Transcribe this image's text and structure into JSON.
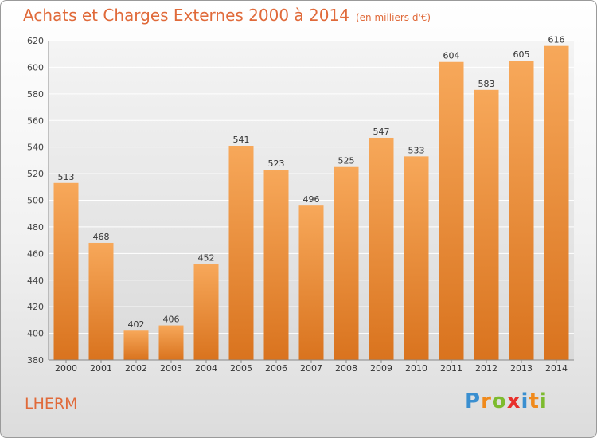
{
  "chart_data": {
    "type": "bar",
    "title": "Achats et Charges Externes 2000 à 2014",
    "subtitle": "(en milliers d'€)",
    "categories": [
      "2000",
      "2001",
      "2002",
      "2003",
      "2004",
      "2005",
      "2006",
      "2007",
      "2008",
      "2009",
      "2010",
      "2011",
      "2012",
      "2013",
      "2014"
    ],
    "values": [
      513,
      468,
      402,
      406,
      452,
      541,
      523,
      496,
      525,
      547,
      533,
      604,
      583,
      605,
      616
    ],
    "ylim": [
      380,
      620
    ],
    "yticks": [
      380,
      400,
      420,
      440,
      460,
      480,
      500,
      520,
      540,
      560,
      580,
      600,
      620
    ],
    "grid": true,
    "bar_color_top": "#f7a85a",
    "bar_color_bottom": "#d9731e"
  },
  "commune": "LHERM",
  "logo": {
    "letters": [
      "P",
      "r",
      "o",
      "x",
      "i",
      "t",
      "i"
    ],
    "colors": [
      "#3a8fd0",
      "#f08a1c",
      "#7dbb2e",
      "#e8302c",
      "#3a8fd0",
      "#f08a1c",
      "#7dbb2e"
    ]
  }
}
